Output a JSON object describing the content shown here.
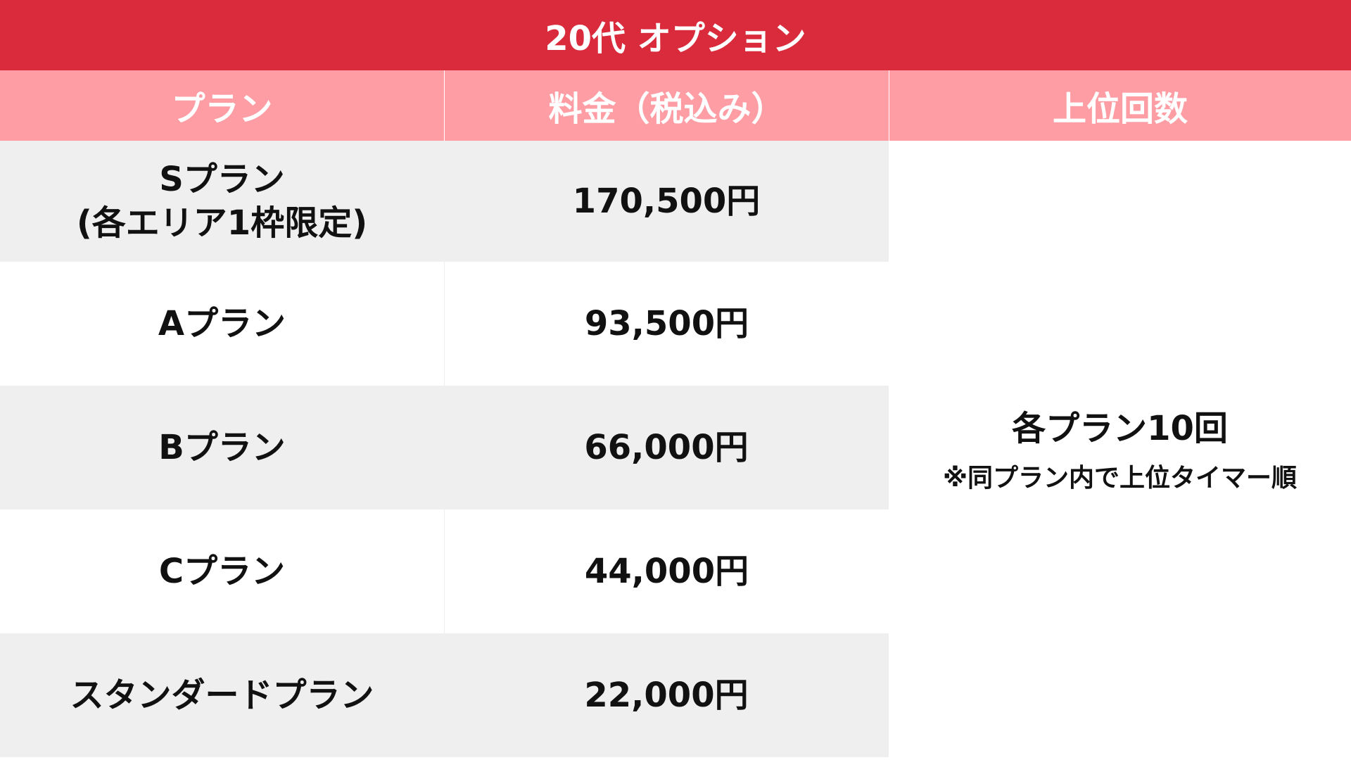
{
  "title": "20代 オプション",
  "headers": {
    "plan": "プラン",
    "price": "料金（税込み）",
    "rank": "上位回数"
  },
  "rows": [
    {
      "plan_line1": "Sプラン",
      "plan_line2": "(各エリア1枠限定)",
      "price": "170,500円"
    },
    {
      "plan_line1": "Aプラン",
      "price": "93,500円"
    },
    {
      "plan_line1": "Bプラン",
      "price": "66,000円"
    },
    {
      "plan_line1": "Cプラン",
      "price": "44,000円"
    },
    {
      "plan_line1": "スタンダードプラン",
      "price": "22,000円"
    }
  ],
  "rank": {
    "main": "各プラン10回",
    "note": "※同プラン内で上位タイマー順"
  },
  "colors": {
    "title_bg": "#d92b3b",
    "header_bg": "#fe9da4",
    "row_gray": "#efefef",
    "row_white": "#ffffff"
  }
}
